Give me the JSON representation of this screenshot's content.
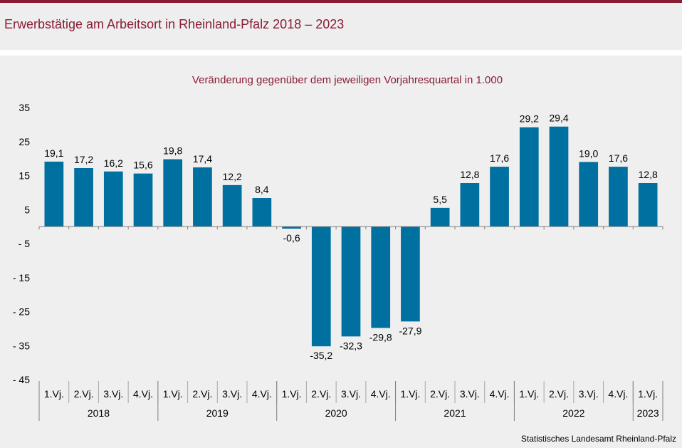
{
  "header": {
    "title": "Erwerbstätige am Arbeitsort in Rheinland-Pfalz 2018 – 2023"
  },
  "colors": {
    "accent": "#8a1c34",
    "bar": "#0070a0",
    "background": "#efefef"
  },
  "source": "Statistisches Landesamt  Rheinland-Pfalz",
  "chart_data": {
    "type": "bar",
    "title": "Veränderung  gegenüber  dem jeweiligen Vorjahresquartal  in 1.000",
    "xlabel": "",
    "ylabel": "",
    "ylim": [
      -45,
      35
    ],
    "yticks": [
      35,
      25,
      15,
      5,
      -5,
      -15,
      -25,
      -35,
      -45
    ],
    "ytick_labels": [
      "35",
      "25",
      "15",
      "5",
      "- 5",
      "- 15",
      "- 25",
      "- 35",
      "- 45"
    ],
    "categories": [
      "1.Vj.",
      "2.Vj.",
      "3.Vj.",
      "4.Vj.",
      "1.Vj.",
      "2.Vj.",
      "3.Vj.",
      "4.Vj.",
      "1.Vj.",
      "2.Vj.",
      "3.Vj.",
      "4.Vj.",
      "1.Vj.",
      "2.Vj.",
      "3.Vj.",
      "4.Vj.",
      "1.Vj.",
      "2.Vj.",
      "3.Vj.",
      "4.Vj.",
      "1.Vj."
    ],
    "values": [
      19.1,
      17.2,
      16.2,
      15.6,
      19.8,
      17.4,
      12.2,
      8.4,
      -0.6,
      -35.2,
      -32.3,
      -29.8,
      -27.9,
      5.5,
      12.8,
      17.6,
      29.2,
      29.4,
      19.0,
      17.6,
      12.8
    ],
    "value_labels": [
      "19,1",
      "17,2",
      "16,2",
      "15,6",
      "19,8",
      "17,4",
      "12,2",
      "8,4",
      "-0,6",
      "-35,2",
      "-32,3",
      "-29,8",
      "-27,9",
      "5,5",
      "12,8",
      "17,6",
      "29,2",
      "29,4",
      "19,0",
      "17,6",
      "12,8"
    ],
    "year_groups": [
      {
        "label": "2018",
        "count": 4
      },
      {
        "label": "2019",
        "count": 4
      },
      {
        "label": "2020",
        "count": 4
      },
      {
        "label": "2021",
        "count": 4
      },
      {
        "label": "2022",
        "count": 4
      },
      {
        "label": "2023",
        "count": 1
      }
    ],
    "grid": false,
    "legend": "none"
  }
}
